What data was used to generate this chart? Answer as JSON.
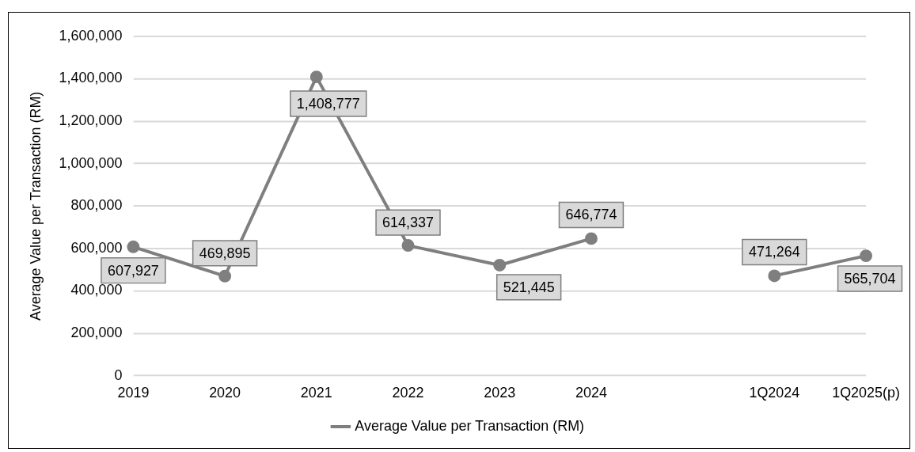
{
  "chart_data": {
    "type": "line",
    "ylabel": "Average Value per Transaction (RM)",
    "categories": [
      "2019",
      "2020",
      "2021",
      "2022",
      "2023",
      "2024",
      null,
      "1Q2024",
      "1Q2025(p)"
    ],
    "series": [
      {
        "name": "Average Value per Transaction (RM)",
        "color": "#7f7f7f",
        "values": [
          607927,
          469895,
          1408777,
          614337,
          521445,
          646774,
          null,
          471264,
          565704
        ],
        "value_labels": [
          "607,927",
          "469,895",
          "1,408,777",
          "614,337",
          "521,445",
          "646,774",
          null,
          "471,264",
          "565,704"
        ]
      }
    ],
    "ylim": [
      0,
      1600000
    ],
    "yticks": [
      {
        "value": 0,
        "label": "0"
      },
      {
        "value": 200000,
        "label": "200,000"
      },
      {
        "value": 400000,
        "label": "400,000"
      },
      {
        "value": 600000,
        "label": "600,000"
      },
      {
        "value": 800000,
        "label": "800,000"
      },
      {
        "value": 1000000,
        "label": "1,000,000"
      },
      {
        "value": 1200000,
        "label": "1,200,000"
      },
      {
        "value": 1400000,
        "label": "1,400,000"
      },
      {
        "value": 1600000,
        "label": "1,600,000"
      }
    ],
    "grid": "y",
    "legend": "bottom",
    "marker": "circle",
    "line_style": "solid"
  }
}
